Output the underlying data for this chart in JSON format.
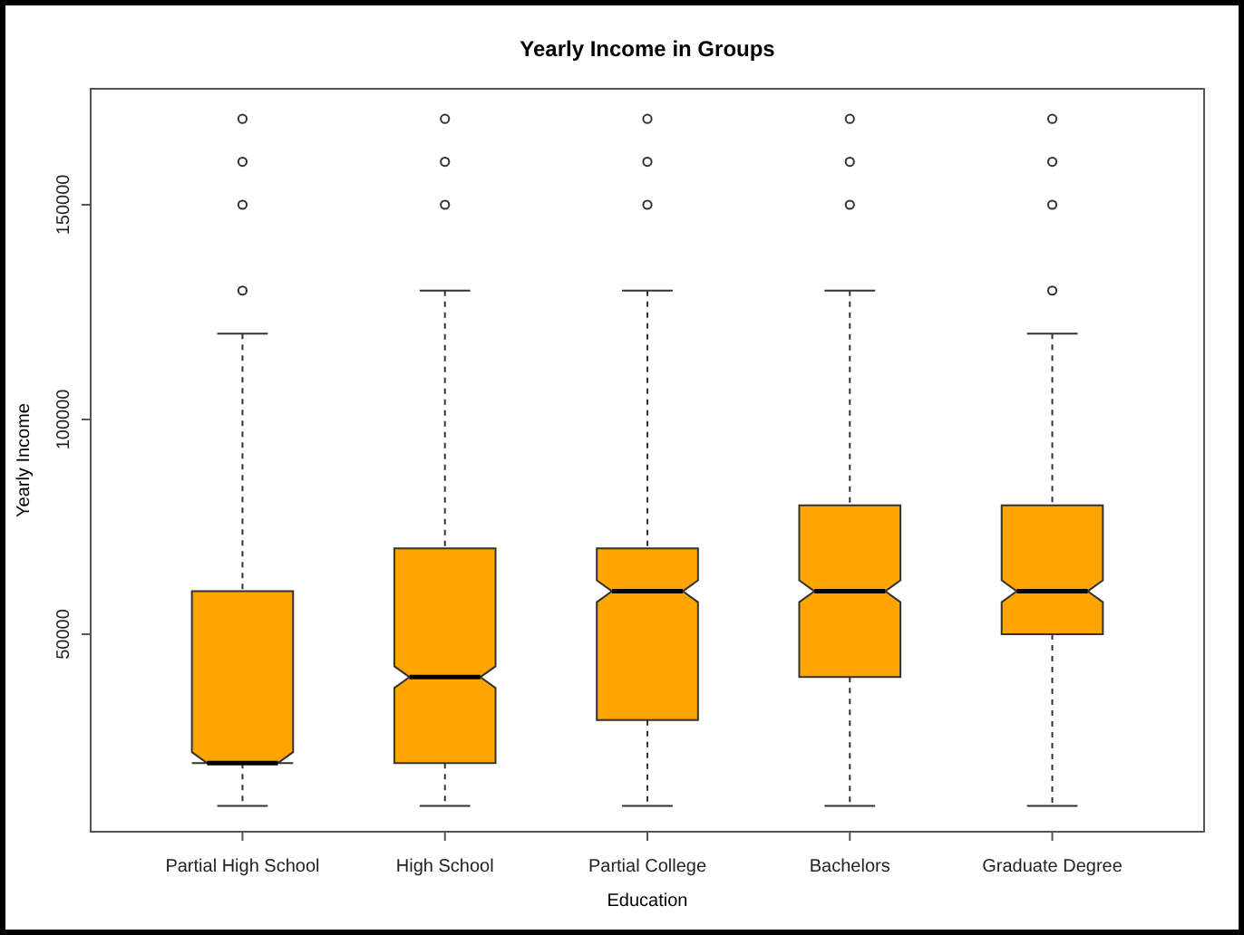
{
  "chart_data": {
    "type": "box",
    "title": "Yearly Income in Groups",
    "xlabel": "Education",
    "ylabel": "Yearly Income",
    "categories": [
      "Partial High School",
      "High School",
      "Partial College",
      "Bachelors",
      "Graduate Degree"
    ],
    "color": "#ffa500",
    "boxes": [
      {
        "low": 10000,
        "q1": 20000,
        "median": 20000,
        "q3": 60000,
        "high": 120000,
        "outliers": [
          130000,
          150000,
          160000,
          170000
        ]
      },
      {
        "low": 10000,
        "q1": 20000,
        "median": 40000,
        "q3": 70000,
        "high": 130000,
        "outliers": [
          150000,
          160000,
          170000
        ]
      },
      {
        "low": 10000,
        "q1": 30000,
        "median": 60000,
        "q3": 70000,
        "high": 130000,
        "outliers": [
          150000,
          160000,
          170000
        ]
      },
      {
        "low": 10000,
        "q1": 40000,
        "median": 60000,
        "q3": 80000,
        "high": 130000,
        "outliers": [
          150000,
          160000,
          170000
        ]
      },
      {
        "low": 10000,
        "q1": 50000,
        "median": 60000,
        "q3": 80000,
        "high": 120000,
        "outliers": [
          130000,
          150000,
          160000,
          170000
        ]
      }
    ],
    "ylim": [
      4000,
      177000
    ],
    "yticks": [
      50000,
      100000,
      150000
    ],
    "grid": false,
    "legend": false
  }
}
